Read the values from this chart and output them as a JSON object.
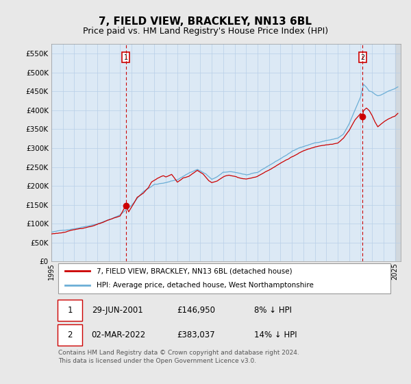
{
  "title": "7, FIELD VIEW, BRACKLEY, NN13 6BL",
  "subtitle": "Price paid vs. HM Land Registry's House Price Index (HPI)",
  "ytick_values": [
    0,
    50000,
    100000,
    150000,
    200000,
    250000,
    300000,
    350000,
    400000,
    450000,
    500000,
    550000
  ],
  "ylim": [
    0,
    575000
  ],
  "xlim_start": 1995.0,
  "xlim_end": 2025.5,
  "background_color": "#e8e8e8",
  "plot_bg_color": "#dce9f5",
  "grid_color": "#b8cfe8",
  "hpi_color": "#6baed6",
  "price_color": "#cc0000",
  "point1_x": 2001.5,
  "point1_y": 146950,
  "point2_x": 2022.17,
  "point2_y": 383037,
  "legend_label_red": "7, FIELD VIEW, BRACKLEY, NN13 6BL (detached house)",
  "legend_label_blue": "HPI: Average price, detached house, West Northamptonshire",
  "table_row1": [
    "1",
    "29-JUN-2001",
    "£146,950",
    "8% ↓ HPI"
  ],
  "table_row2": [
    "2",
    "02-MAR-2022",
    "£383,037",
    "14% ↓ HPI"
  ],
  "footer": "Contains HM Land Registry data © Crown copyright and database right 2024.\nThis data is licensed under the Open Government Licence v3.0."
}
